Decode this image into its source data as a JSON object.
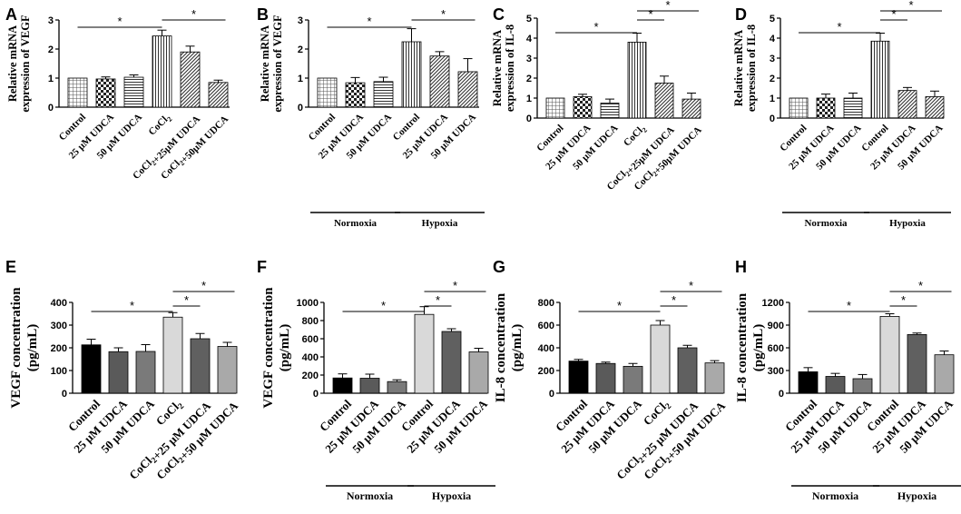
{
  "chart_data": [
    {
      "id": "A",
      "type": "bar",
      "style": "pattern",
      "panel_label": "A",
      "ylabel": [
        "Relative mRNA",
        "expression of VEGF"
      ],
      "ylim": [
        0,
        3
      ],
      "yticks": [
        "0",
        "1",
        "2",
        "3"
      ],
      "categories": [
        "Control",
        "25 μM UDCA",
        "50 μM UDCA",
        "CoCl₂",
        "CoCl₂+25μM UDCA",
        "CoCl₂+50μM UDCA"
      ],
      "values": [
        1.0,
        0.97,
        1.03,
        2.45,
        1.9,
        0.85
      ],
      "errors": [
        0.0,
        0.07,
        0.08,
        0.2,
        0.2,
        0.08
      ],
      "patterns": [
        "grid",
        "check",
        "hlines",
        "vlines",
        "diag",
        "diag"
      ],
      "groups": [],
      "significance": [
        {
          "from": 0,
          "to": 3,
          "label": "*"
        },
        {
          "from": 3,
          "to": 5,
          "label": "*"
        }
      ]
    },
    {
      "id": "B",
      "type": "bar",
      "style": "pattern",
      "panel_label": "B",
      "ylabel": [
        "Relative mRNA",
        "expression of VEGF"
      ],
      "ylim": [
        0,
        3
      ],
      "yticks": [
        "0",
        "1",
        "2",
        "3"
      ],
      "categories": [
        "Control",
        "25 μM UDCA",
        "50 μM UDCA",
        "Control",
        "25 μM UDCA",
        "50 μM UDCA"
      ],
      "values": [
        1.0,
        0.84,
        0.88,
        2.25,
        1.76,
        1.22
      ],
      "errors": [
        0.0,
        0.18,
        0.15,
        0.45,
        0.15,
        0.45
      ],
      "patterns": [
        "grid",
        "check",
        "hlines",
        "vlines",
        "diag",
        "diag"
      ],
      "groups": [
        {
          "label": "Normoxia",
          "from": 0,
          "to": 2
        },
        {
          "label": "Hypoxia",
          "from": 3,
          "to": 5
        }
      ],
      "significance": [
        {
          "from": 0,
          "to": 3,
          "label": "*"
        },
        {
          "from": 3,
          "to": 5,
          "label": "*"
        }
      ]
    },
    {
      "id": "C",
      "type": "bar",
      "style": "pattern",
      "panel_label": "C",
      "ylabel": [
        "Relative mRNA",
        "expression of IL-8"
      ],
      "ylim": [
        0,
        5
      ],
      "yticks": [
        "0",
        "1",
        "2",
        "3",
        "4",
        "5"
      ],
      "categories": [
        "Control",
        "25 μM UDCA",
        "50 μM UDCA",
        "CoCl₂",
        "CoCl₂+25μM UDCA",
        "CoCl₂+50μM UDCA"
      ],
      "values": [
        1.0,
        1.07,
        0.75,
        3.8,
        1.75,
        0.95
      ],
      "errors": [
        0.0,
        0.12,
        0.2,
        0.45,
        0.35,
        0.3
      ],
      "patterns": [
        "grid",
        "check",
        "hlines",
        "vlines",
        "diag",
        "diag"
      ],
      "groups": [],
      "significance": [
        {
          "from": 0,
          "to": 3,
          "label": "*"
        },
        {
          "from": 3,
          "to": 4,
          "label": "*"
        },
        {
          "from": 3,
          "to": 5,
          "label": "*"
        }
      ]
    },
    {
      "id": "D",
      "type": "bar",
      "style": "pattern",
      "panel_label": "D",
      "ylabel": [
        "Relative mRNA",
        "expression of IL-8"
      ],
      "ylim": [
        0,
        5
      ],
      "yticks": [
        "0",
        "1",
        "2",
        "3",
        "4",
        "5"
      ],
      "categories": [
        "Control",
        "25 μM UDCA",
        "50 μM UDCA",
        "Control",
        "25 μM UDCA",
        "50 μM UDCA"
      ],
      "values": [
        1.0,
        1.0,
        1.0,
        3.85,
        1.38,
        1.07
      ],
      "errors": [
        0.0,
        0.2,
        0.25,
        0.4,
        0.15,
        0.28
      ],
      "patterns": [
        "grid",
        "check",
        "hlines",
        "vlines",
        "diag",
        "diag"
      ],
      "groups": [
        {
          "label": "Normoxia",
          "from": 0,
          "to": 2
        },
        {
          "label": "Hypoxia",
          "from": 3,
          "to": 5
        }
      ],
      "significance": [
        {
          "from": 0,
          "to": 3,
          "label": "*"
        },
        {
          "from": 3,
          "to": 4,
          "label": "*"
        },
        {
          "from": 3,
          "to": 5,
          "label": "*"
        }
      ]
    },
    {
      "id": "E",
      "type": "bar",
      "style": "solid",
      "panel_label": "E",
      "ylabel": [
        "VEGF concentration",
        "(pg/mL)"
      ],
      "ylim": [
        0,
        400
      ],
      "yticks": [
        "0",
        "100",
        "200",
        "300",
        "400"
      ],
      "categories": [
        "Control",
        "25 μM UDCA",
        "50 μM UDCA",
        "CoCl₂",
        "CoCl₂+25 μM UDCA",
        "CoCl₂+50 μM UDCA"
      ],
      "values": [
        213,
        183,
        184,
        335,
        240,
        206
      ],
      "errors": [
        25,
        17,
        30,
        20,
        23,
        18
      ],
      "colors": [
        "#000000",
        "#5a5a5a",
        "#7a7a7a",
        "#d9d9d9",
        "#606060",
        "#a9a9a9"
      ],
      "groups": [],
      "significance": [
        {
          "from": 0,
          "to": 3,
          "label": "*"
        },
        {
          "from": 3,
          "to": 4,
          "label": "*"
        },
        {
          "from": 3,
          "to": 5,
          "label": "*"
        }
      ]
    },
    {
      "id": "F",
      "type": "bar",
      "style": "solid",
      "panel_label": "F",
      "ylabel": [
        "VEGF concentration",
        "(pg/mL)"
      ],
      "ylim": [
        0,
        1000
      ],
      "yticks": [
        "0",
        "200",
        "400",
        "600",
        "800",
        "1000"
      ],
      "categories": [
        "Control",
        "25 μM UDCA",
        "50 μM UDCA",
        "Control",
        "25 μM UDCA",
        "50 μM UDCA"
      ],
      "values": [
        168,
        165,
        128,
        868,
        680,
        455
      ],
      "errors": [
        45,
        45,
        20,
        85,
        30,
        40
      ],
      "colors": [
        "#000000",
        "#5a5a5a",
        "#7a7a7a",
        "#d9d9d9",
        "#606060",
        "#a9a9a9"
      ],
      "groups": [
        {
          "label": "Normoxia",
          "from": 0,
          "to": 2
        },
        {
          "label": "Hypoxia",
          "from": 3,
          "to": 5
        }
      ],
      "significance": [
        {
          "from": 0,
          "to": 3,
          "label": "*"
        },
        {
          "from": 3,
          "to": 4,
          "label": "*"
        },
        {
          "from": 3,
          "to": 5,
          "label": "*"
        }
      ]
    },
    {
      "id": "G",
      "type": "bar",
      "style": "solid",
      "panel_label": "G",
      "ylabel": [
        "IL-8 concentration",
        "(pg/mL)"
      ],
      "ylim": [
        0,
        800
      ],
      "yticks": [
        "0",
        "200",
        "400",
        "600",
        "800"
      ],
      "categories": [
        "Control",
        "25 μM UDCA",
        "50 μM UDCA",
        "CoCl₂",
        "CoCl₂+25 μM UDCA",
        "CoCl₂+50 μM UDCA"
      ],
      "values": [
        283,
        262,
        237,
        600,
        400,
        267
      ],
      "errors": [
        15,
        12,
        25,
        40,
        22,
        20
      ],
      "colors": [
        "#000000",
        "#5a5a5a",
        "#7a7a7a",
        "#d9d9d9",
        "#606060",
        "#a9a9a9"
      ],
      "groups": [],
      "significance": [
        {
          "from": 0,
          "to": 3,
          "label": "*"
        },
        {
          "from": 3,
          "to": 4,
          "label": "*"
        },
        {
          "from": 3,
          "to": 5,
          "label": "*"
        }
      ]
    },
    {
      "id": "H",
      "type": "bar",
      "style": "solid",
      "panel_label": "H",
      "ylabel": [
        "IL-8 concentration",
        "(pg/mL)"
      ],
      "ylim": [
        0,
        1200
      ],
      "yticks": [
        "0",
        "300",
        "600",
        "900",
        "1200"
      ],
      "categories": [
        "Control",
        "25 μM UDCA",
        "50 μM UDCA",
        "Control",
        "25 μM UDCA",
        "50 μM UDCA"
      ],
      "values": [
        283,
        222,
        192,
        1015,
        775,
        508
      ],
      "errors": [
        55,
        40,
        55,
        35,
        20,
        50
      ],
      "colors": [
        "#000000",
        "#5a5a5a",
        "#7a7a7a",
        "#d9d9d9",
        "#606060",
        "#a9a9a9"
      ],
      "groups": [
        {
          "label": "Normoxia",
          "from": 0,
          "to": 2
        },
        {
          "label": "Hypoxia",
          "from": 3,
          "to": 5
        }
      ],
      "significance": [
        {
          "from": 0,
          "to": 3,
          "label": "*"
        },
        {
          "from": 3,
          "to": 4,
          "label": "*"
        },
        {
          "from": 3,
          "to": 5,
          "label": "*"
        }
      ]
    }
  ]
}
